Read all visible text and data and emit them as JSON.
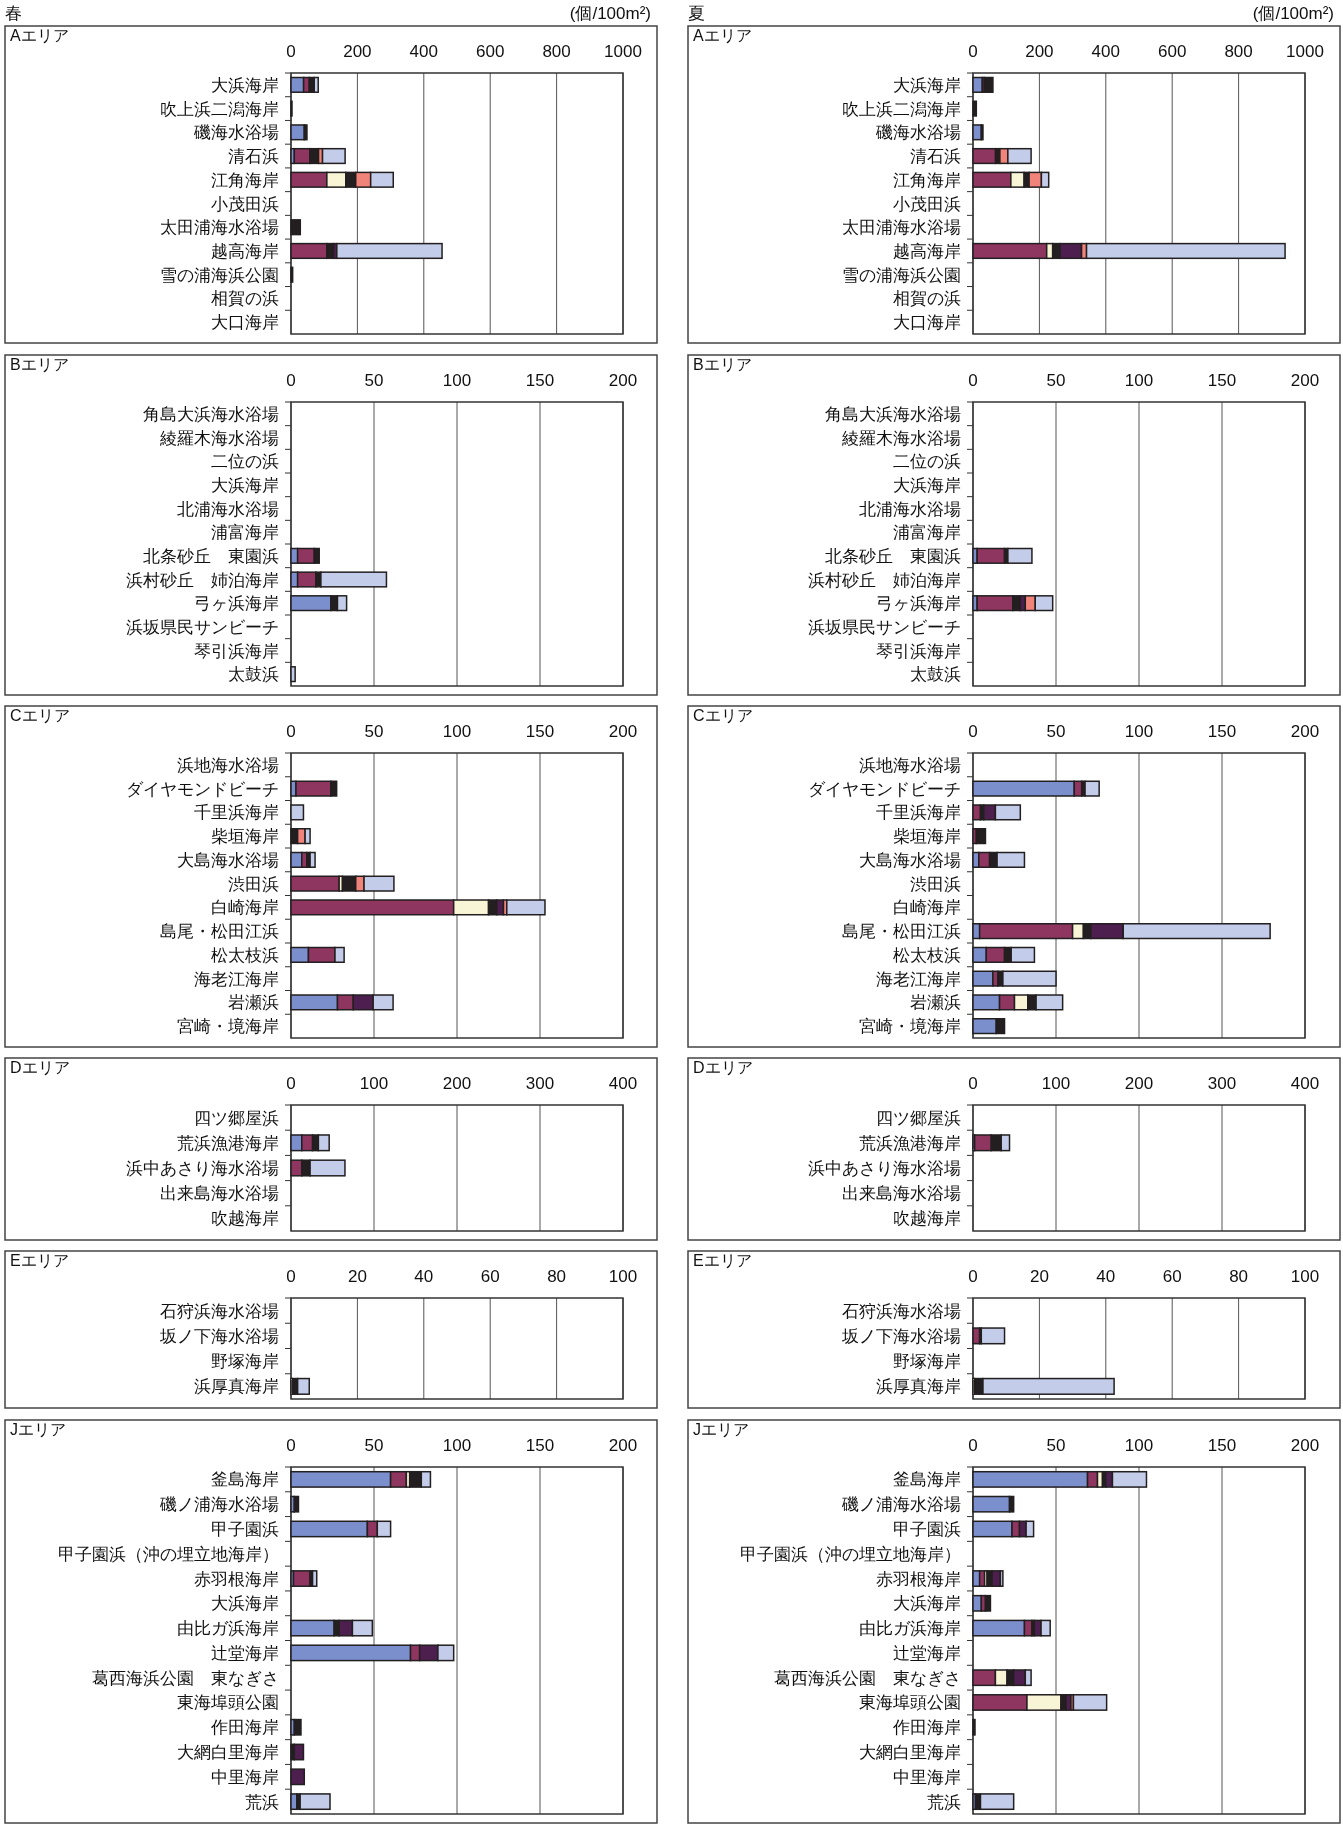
{
  "chart_data": [
    {
      "type": "bar",
      "orientation": "horizontal",
      "stacked": true,
      "grid": "x",
      "title": "Aエリア",
      "annotations": [
        "春",
        "(個/100m²)"
      ],
      "xlim": [
        0,
        1000
      ],
      "xticks": [
        0,
        200,
        400,
        600,
        800,
        1000
      ],
      "categories": [
        "大浜海岸",
        "吹上浜二潟海岸",
        "磯海水浴場",
        "清石浜",
        "江角海岸",
        "小茂田浜",
        "太田浦海水浴場",
        "越高海岸",
        "雪の浦海浜公園",
        "相賀の浜",
        "大口海岸"
      ],
      "series": [
        {
          "color": "#7b8fcc",
          "values": [
            38,
            null,
            40,
            10,
            null,
            null,
            null,
            null,
            null,
            null,
            null
          ]
        },
        {
          "color": "#8e3560",
          "values": [
            17,
            null,
            null,
            47,
            108,
            null,
            null,
            108,
            null,
            null,
            null
          ]
        },
        {
          "color": "#f8f4d6",
          "values": [
            null,
            null,
            null,
            null,
            57,
            null,
            null,
            null,
            null,
            null,
            null
          ]
        },
        {
          "color": "#231f20",
          "values": [
            15,
            3,
            8,
            26,
            30,
            null,
            28,
            20,
            5,
            null,
            null
          ]
        },
        {
          "color": "#4d1f4e",
          "values": [
            null,
            null,
            null,
            null,
            null,
            null,
            null,
            10,
            null,
            null,
            null
          ]
        },
        {
          "color": "#f0837a",
          "values": [
            null,
            null,
            null,
            12,
            45,
            null,
            null,
            null,
            null,
            null,
            null
          ]
        },
        {
          "color": "#c3cce8",
          "values": [
            12,
            null,
            null,
            68,
            68,
            null,
            null,
            317,
            null,
            null,
            null
          ]
        }
      ]
    },
    {
      "type": "bar",
      "orientation": "horizontal",
      "stacked": true,
      "grid": "x",
      "title": "Aエリア",
      "annotations": [
        "夏",
        "(個/100m²)"
      ],
      "xlim": [
        0,
        1000
      ],
      "xticks": [
        0,
        200,
        400,
        600,
        800,
        1000
      ],
      "categories": [
        "大浜海岸",
        "吹上浜二潟海岸",
        "磯海水浴場",
        "清石浜",
        "江角海岸",
        "小茂田浜",
        "太田浦海水浴場",
        "越高海岸",
        "雪の浦海浜公園",
        "相賀の浜",
        "大口海岸"
      ],
      "series": [
        {
          "color": "#7b8fcc",
          "values": [
            28,
            null,
            25,
            null,
            null,
            null,
            null,
            null,
            null,
            null,
            null
          ]
        },
        {
          "color": "#8e3560",
          "values": [
            6,
            null,
            null,
            68,
            114,
            null,
            null,
            222,
            null,
            null,
            null
          ]
        },
        {
          "color": "#f8f4d6",
          "values": [
            null,
            null,
            null,
            null,
            40,
            null,
            null,
            18,
            null,
            null,
            null
          ]
        },
        {
          "color": "#231f20",
          "values": [
            26,
            10,
            5,
            13,
            15,
            null,
            null,
            22,
            null,
            null,
            null
          ]
        },
        {
          "color": "#4d1f4e",
          "values": [
            null,
            null,
            null,
            null,
            null,
            null,
            null,
            65,
            null,
            null,
            null
          ]
        },
        {
          "color": "#f0837a",
          "values": [
            null,
            null,
            null,
            24,
            37,
            null,
            null,
            15,
            null,
            null,
            null
          ]
        },
        {
          "color": "#c3cce8",
          "values": [
            null,
            null,
            null,
            70,
            22,
            null,
            null,
            598,
            null,
            null,
            null
          ]
        }
      ]
    },
    {
      "type": "bar",
      "orientation": "horizontal",
      "stacked": true,
      "grid": "x",
      "title": "Bエリア",
      "xlim": [
        0,
        200
      ],
      "xticks": [
        0,
        50,
        100,
        150,
        200
      ],
      "categories": [
        "角島大浜海水浴場",
        "綾羅木海水浴場",
        "二位の浜",
        "大浜海岸",
        "北浦海水浴場",
        "浦富海岸",
        "北条砂丘　東園浜",
        "浜村砂丘　姉泊海岸",
        "弓ヶ浜海岸",
        "浜坂県民サンビーチ",
        "琴引浜海岸",
        "太鼓浜"
      ],
      "series": [
        {
          "color": "#7b8fcc",
          "values": [
            null,
            null,
            null,
            null,
            null,
            null,
            4,
            4,
            24,
            null,
            null,
            null
          ]
        },
        {
          "color": "#8e3560",
          "values": [
            null,
            null,
            null,
            null,
            null,
            null,
            10,
            11,
            null,
            null,
            null,
            null
          ]
        },
        {
          "color": "#231f20",
          "values": [
            null,
            null,
            null,
            null,
            null,
            null,
            3,
            3,
            4,
            null,
            null,
            null
          ]
        },
        {
          "color": "#c3cce8",
          "values": [
            null,
            null,
            null,
            null,
            null,
            null,
            null,
            39.5,
            5.5,
            null,
            null,
            2.5
          ]
        }
      ]
    },
    {
      "type": "bar",
      "orientation": "horizontal",
      "stacked": true,
      "grid": "x",
      "title": "Bエリア",
      "xlim": [
        0,
        200
      ],
      "xticks": [
        0,
        50,
        100,
        150,
        200
      ],
      "categories": [
        "角島大浜海水浴場",
        "綾羅木海水浴場",
        "二位の浜",
        "大浜海岸",
        "北浦海水浴場",
        "浦富海岸",
        "北条砂丘　東園浜",
        "浜村砂丘　姉泊海岸",
        "弓ヶ浜海岸",
        "浜坂県民サンビーチ",
        "琴引浜海岸",
        "太鼓浜"
      ],
      "series": [
        {
          "color": "#7b8fcc",
          "values": [
            null,
            null,
            null,
            null,
            null,
            null,
            2.5,
            null,
            2.5,
            null,
            null,
            null
          ]
        },
        {
          "color": "#8e3560",
          "values": [
            null,
            null,
            null,
            null,
            null,
            null,
            16.5,
            null,
            21.5,
            null,
            null,
            null
          ]
        },
        {
          "color": "#231f20",
          "values": [
            null,
            null,
            null,
            null,
            null,
            null,
            2,
            null,
            4.5,
            null,
            null,
            null
          ]
        },
        {
          "color": "#4d1f4e",
          "values": [
            null,
            null,
            null,
            null,
            null,
            null,
            null,
            null,
            3,
            null,
            null,
            null
          ]
        },
        {
          "color": "#f0837a",
          "values": [
            null,
            null,
            null,
            null,
            null,
            null,
            null,
            null,
            6,
            null,
            null,
            null
          ]
        },
        {
          "color": "#c3cce8",
          "values": [
            null,
            null,
            null,
            null,
            null,
            null,
            14.5,
            null,
            10.5,
            null,
            null,
            null
          ]
        }
      ]
    },
    {
      "type": "bar",
      "orientation": "horizontal",
      "stacked": true,
      "grid": "x",
      "title": "Cエリア",
      "xlim": [
        0,
        200
      ],
      "xticks": [
        0,
        50,
        100,
        150,
        200
      ],
      "categories": [
        "浜地海水浴場",
        "ダイヤモンドビーチ",
        "千里浜海岸",
        "柴垣海岸",
        "大島海水浴場",
        "渋田浜",
        "白崎海岸",
        "島尾・松田江浜",
        "松太枝浜",
        "海老江海岸",
        "岩瀬浜",
        "宮崎・境海岸"
      ],
      "series": [
        {
          "color": "#7b8fcc",
          "values": [
            null,
            3,
            null,
            null,
            6.5,
            null,
            null,
            null,
            10.5,
            null,
            28,
            null
          ]
        },
        {
          "color": "#8e3560",
          "values": [
            null,
            21,
            null,
            null,
            3,
            29,
            98,
            null,
            16,
            null,
            9.5,
            null
          ]
        },
        {
          "color": "#f8f4d6",
          "values": [
            null,
            null,
            null,
            null,
            null,
            2,
            21,
            null,
            null,
            null,
            null,
            null
          ]
        },
        {
          "color": "#231f20",
          "values": [
            null,
            3.5,
            null,
            4,
            2,
            8,
            5,
            null,
            null,
            null,
            null,
            null
          ]
        },
        {
          "color": "#4d1f4e",
          "values": [
            null,
            null,
            null,
            null,
            null,
            null,
            4,
            null,
            null,
            null,
            12,
            null
          ]
        },
        {
          "color": "#f0837a",
          "values": [
            null,
            null,
            null,
            4.5,
            null,
            5,
            2,
            null,
            null,
            null,
            null,
            null
          ]
        },
        {
          "color": "#c3cce8",
          "values": [
            null,
            null,
            7.5,
            3,
            3,
            18,
            23,
            null,
            5.5,
            null,
            12,
            null
          ]
        }
      ]
    },
    {
      "type": "bar",
      "orientation": "horizontal",
      "stacked": true,
      "grid": "x",
      "title": "Cエリア",
      "xlim": [
        0,
        200
      ],
      "xticks": [
        0,
        50,
        100,
        150,
        200
      ],
      "categories": [
        "浜地海水浴場",
        "ダイヤモンドビーチ",
        "千里浜海岸",
        "柴垣海岸",
        "大島海水浴場",
        "渋田浜",
        "白崎海岸",
        "島尾・松田江浜",
        "松太枝浜",
        "海老江海岸",
        "岩瀬浜",
        "宮崎・境海岸"
      ],
      "series": [
        {
          "color": "#7b8fcc",
          "values": [
            null,
            61,
            null,
            null,
            3.5,
            null,
            null,
            4,
            8,
            12,
            16,
            14
          ]
        },
        {
          "color": "#8e3560",
          "values": [
            null,
            4.5,
            4.5,
            2,
            6.5,
            null,
            null,
            56,
            11,
            3,
            9,
            null
          ]
        },
        {
          "color": "#f8f4d6",
          "values": [
            null,
            null,
            null,
            null,
            null,
            null,
            null,
            6.5,
            null,
            null,
            8,
            null
          ]
        },
        {
          "color": "#231f20",
          "values": [
            null,
            2,
            2,
            5.5,
            4.5,
            null,
            null,
            4.5,
            4,
            3,
            5,
            5
          ]
        },
        {
          "color": "#4d1f4e",
          "values": [
            null,
            null,
            7,
            null,
            null,
            null,
            null,
            19.5,
            null,
            null,
            null,
            null
          ]
        },
        {
          "color": "#c3cce8",
          "values": [
            null,
            8.5,
            15,
            null,
            16.5,
            null,
            null,
            88.5,
            14,
            32,
            16,
            null
          ]
        }
      ]
    },
    {
      "type": "bar",
      "orientation": "horizontal",
      "stacked": true,
      "grid": "x",
      "title": "Dエリア",
      "xlim": [
        0,
        400
      ],
      "xticks": [
        0,
        100,
        200,
        300,
        400
      ],
      "categories": [
        "四ツ郷屋浜",
        "荒浜漁港海岸",
        "浜中あさり海水浴場",
        "出来島海水浴場",
        "吹越海岸"
      ],
      "series": [
        {
          "color": "#7b8fcc",
          "values": [
            null,
            13,
            null,
            null,
            null
          ]
        },
        {
          "color": "#8e3560",
          "values": [
            null,
            13,
            13,
            null,
            null
          ]
        },
        {
          "color": "#231f20",
          "values": [
            null,
            7,
            10,
            null,
            null
          ]
        },
        {
          "color": "#c3cce8",
          "values": [
            null,
            13,
            42,
            null,
            null
          ]
        }
      ]
    },
    {
      "type": "bar",
      "orientation": "horizontal",
      "stacked": true,
      "grid": "x",
      "title": "Dエリア",
      "xlim": [
        0,
        400
      ],
      "xticks": [
        0,
        100,
        200,
        300,
        400
      ],
      "categories": [
        "四ツ郷屋浜",
        "荒浜漁港海岸",
        "浜中あさり海水浴場",
        "出来島海水浴場",
        "吹越海岸"
      ],
      "series": [
        {
          "color": "#7b8fcc",
          "values": [
            null,
            2,
            null,
            null,
            null
          ]
        },
        {
          "color": "#8e3560",
          "values": [
            null,
            20,
            null,
            null,
            null
          ]
        },
        {
          "color": "#231f20",
          "values": [
            null,
            12,
            null,
            null,
            null
          ]
        },
        {
          "color": "#c3cce8",
          "values": [
            null,
            10,
            null,
            null,
            null
          ]
        }
      ]
    },
    {
      "type": "bar",
      "orientation": "horizontal",
      "stacked": true,
      "grid": "x",
      "title": "Eエリア",
      "xlim": [
        0,
        100
      ],
      "xticks": [
        0,
        20,
        40,
        60,
        80,
        100
      ],
      "categories": [
        "石狩浜海水浴場",
        "坂ノ下海水浴場",
        "野塚海岸",
        "浜厚真海岸"
      ],
      "series": [
        {
          "color": "#f8f4d6",
          "values": [
            null,
            null,
            null,
            0.5
          ]
        },
        {
          "color": "#231f20",
          "values": [
            null,
            null,
            null,
            1.5
          ]
        },
        {
          "color": "#c3cce8",
          "values": [
            null,
            null,
            null,
            3.5
          ]
        }
      ]
    },
    {
      "type": "bar",
      "orientation": "horizontal",
      "stacked": true,
      "grid": "x",
      "title": "Eエリア",
      "xlim": [
        0,
        100
      ],
      "xticks": [
        0,
        20,
        40,
        60,
        80,
        100
      ],
      "categories": [
        "石狩浜海水浴場",
        "坂ノ下海水浴場",
        "野塚海岸",
        "浜厚真海岸"
      ],
      "series": [
        {
          "color": "#8e3560",
          "values": [
            null,
            2,
            null,
            null
          ]
        },
        {
          "color": "#f8f4d6",
          "values": [
            null,
            null,
            null,
            0.5
          ]
        },
        {
          "color": "#231f20",
          "values": [
            null,
            0.5,
            null,
            2.5
          ]
        },
        {
          "color": "#c3cce8",
          "values": [
            null,
            7,
            null,
            39.5
          ]
        }
      ]
    },
    {
      "type": "bar",
      "orientation": "horizontal",
      "stacked": true,
      "grid": "x",
      "title": "Jエリア",
      "xlim": [
        0,
        200
      ],
      "xticks": [
        0,
        50,
        100,
        150,
        200
      ],
      "categories": [
        "釜島海岸",
        "磯ノ浦海水浴場",
        "甲子園浜",
        "甲子園浜（沖の埋立地海岸）",
        "赤羽根海岸",
        "大浜海岸",
        "由比ガ浜海岸",
        "辻堂海岸",
        "葛西海浜公園　東なぎさ",
        "東海埠頭公園",
        "作田海岸",
        "大網白里海岸",
        "中里海岸",
        "荒浜"
      ],
      "series": [
        {
          "color": "#7b8fcc",
          "values": [
            60,
            2,
            46,
            null,
            1.5,
            null,
            26,
            72,
            null,
            null,
            2,
            null,
            null,
            3.5
          ]
        },
        {
          "color": "#8e3560",
          "values": [
            9.5,
            null,
            6,
            null,
            10,
            null,
            null,
            5.5,
            null,
            null,
            null,
            null,
            null,
            null
          ]
        },
        {
          "color": "#f8f4d6",
          "values": [
            2,
            null,
            null,
            null,
            null,
            null,
            null,
            null,
            null,
            null,
            null,
            null,
            null,
            null
          ]
        },
        {
          "color": "#231f20",
          "values": [
            7,
            2.5,
            null,
            null,
            1.5,
            null,
            3,
            null,
            null,
            null,
            4,
            2,
            null,
            2
          ]
        },
        {
          "color": "#4d1f4e",
          "values": [
            null,
            null,
            null,
            null,
            null,
            null,
            8,
            11,
            null,
            null,
            null,
            5.5,
            8,
            null
          ]
        },
        {
          "color": "#c3cce8",
          "values": [
            5.5,
            null,
            8,
            null,
            2.5,
            null,
            12,
            9.5,
            null,
            null,
            null,
            null,
            null,
            18
          ]
        }
      ]
    },
    {
      "type": "bar",
      "orientation": "horizontal",
      "stacked": true,
      "grid": "x",
      "title": "Jエリア",
      "xlim": [
        0,
        200
      ],
      "xticks": [
        0,
        50,
        100,
        150,
        200
      ],
      "categories": [
        "釜島海岸",
        "磯ノ浦海水浴場",
        "甲子園浜",
        "甲子園浜（沖の埋立地海岸）",
        "赤羽根海岸",
        "大浜海岸",
        "由比ガ浜海岸",
        "辻堂海岸",
        "葛西海浜公園　東なぎさ",
        "東海埠頭公園",
        "作田海岸",
        "大網白里海岸",
        "中里海岸",
        "荒浜"
      ],
      "series": [
        {
          "color": "#7b8fcc",
          "values": [
            69,
            22,
            23.5,
            null,
            4,
            5,
            31,
            null,
            null,
            null,
            null,
            null,
            null,
            1.5
          ]
        },
        {
          "color": "#8e3560",
          "values": [
            6,
            null,
            4.5,
            null,
            3,
            2.5,
            4.5,
            null,
            13.5,
            32.5,
            null,
            null,
            null,
            null
          ]
        },
        {
          "color": "#f8f4d6",
          "values": [
            3,
            null,
            null,
            null,
            1.5,
            null,
            null,
            null,
            7,
            20.5,
            null,
            null,
            null,
            null
          ]
        },
        {
          "color": "#231f20",
          "values": [
            2,
            2.5,
            null,
            null,
            3,
            3,
            1.5,
            null,
            4,
            3,
            1.2,
            null,
            null,
            3
          ]
        },
        {
          "color": "#4d1f4e",
          "values": [
            4,
            null,
            4,
            null,
            5,
            null,
            4,
            null,
            7,
            3,
            null,
            null,
            null,
            null
          ]
        },
        {
          "color": "#f0837a",
          "values": [
            null,
            null,
            null,
            null,
            null,
            null,
            null,
            null,
            null,
            1.5,
            null,
            null,
            null,
            null
          ]
        },
        {
          "color": "#c3cce8",
          "values": [
            20.5,
            null,
            4.5,
            null,
            1.5,
            null,
            5.5,
            null,
            3.5,
            20,
            null,
            null,
            null,
            20
          ]
        }
      ]
    }
  ]
}
